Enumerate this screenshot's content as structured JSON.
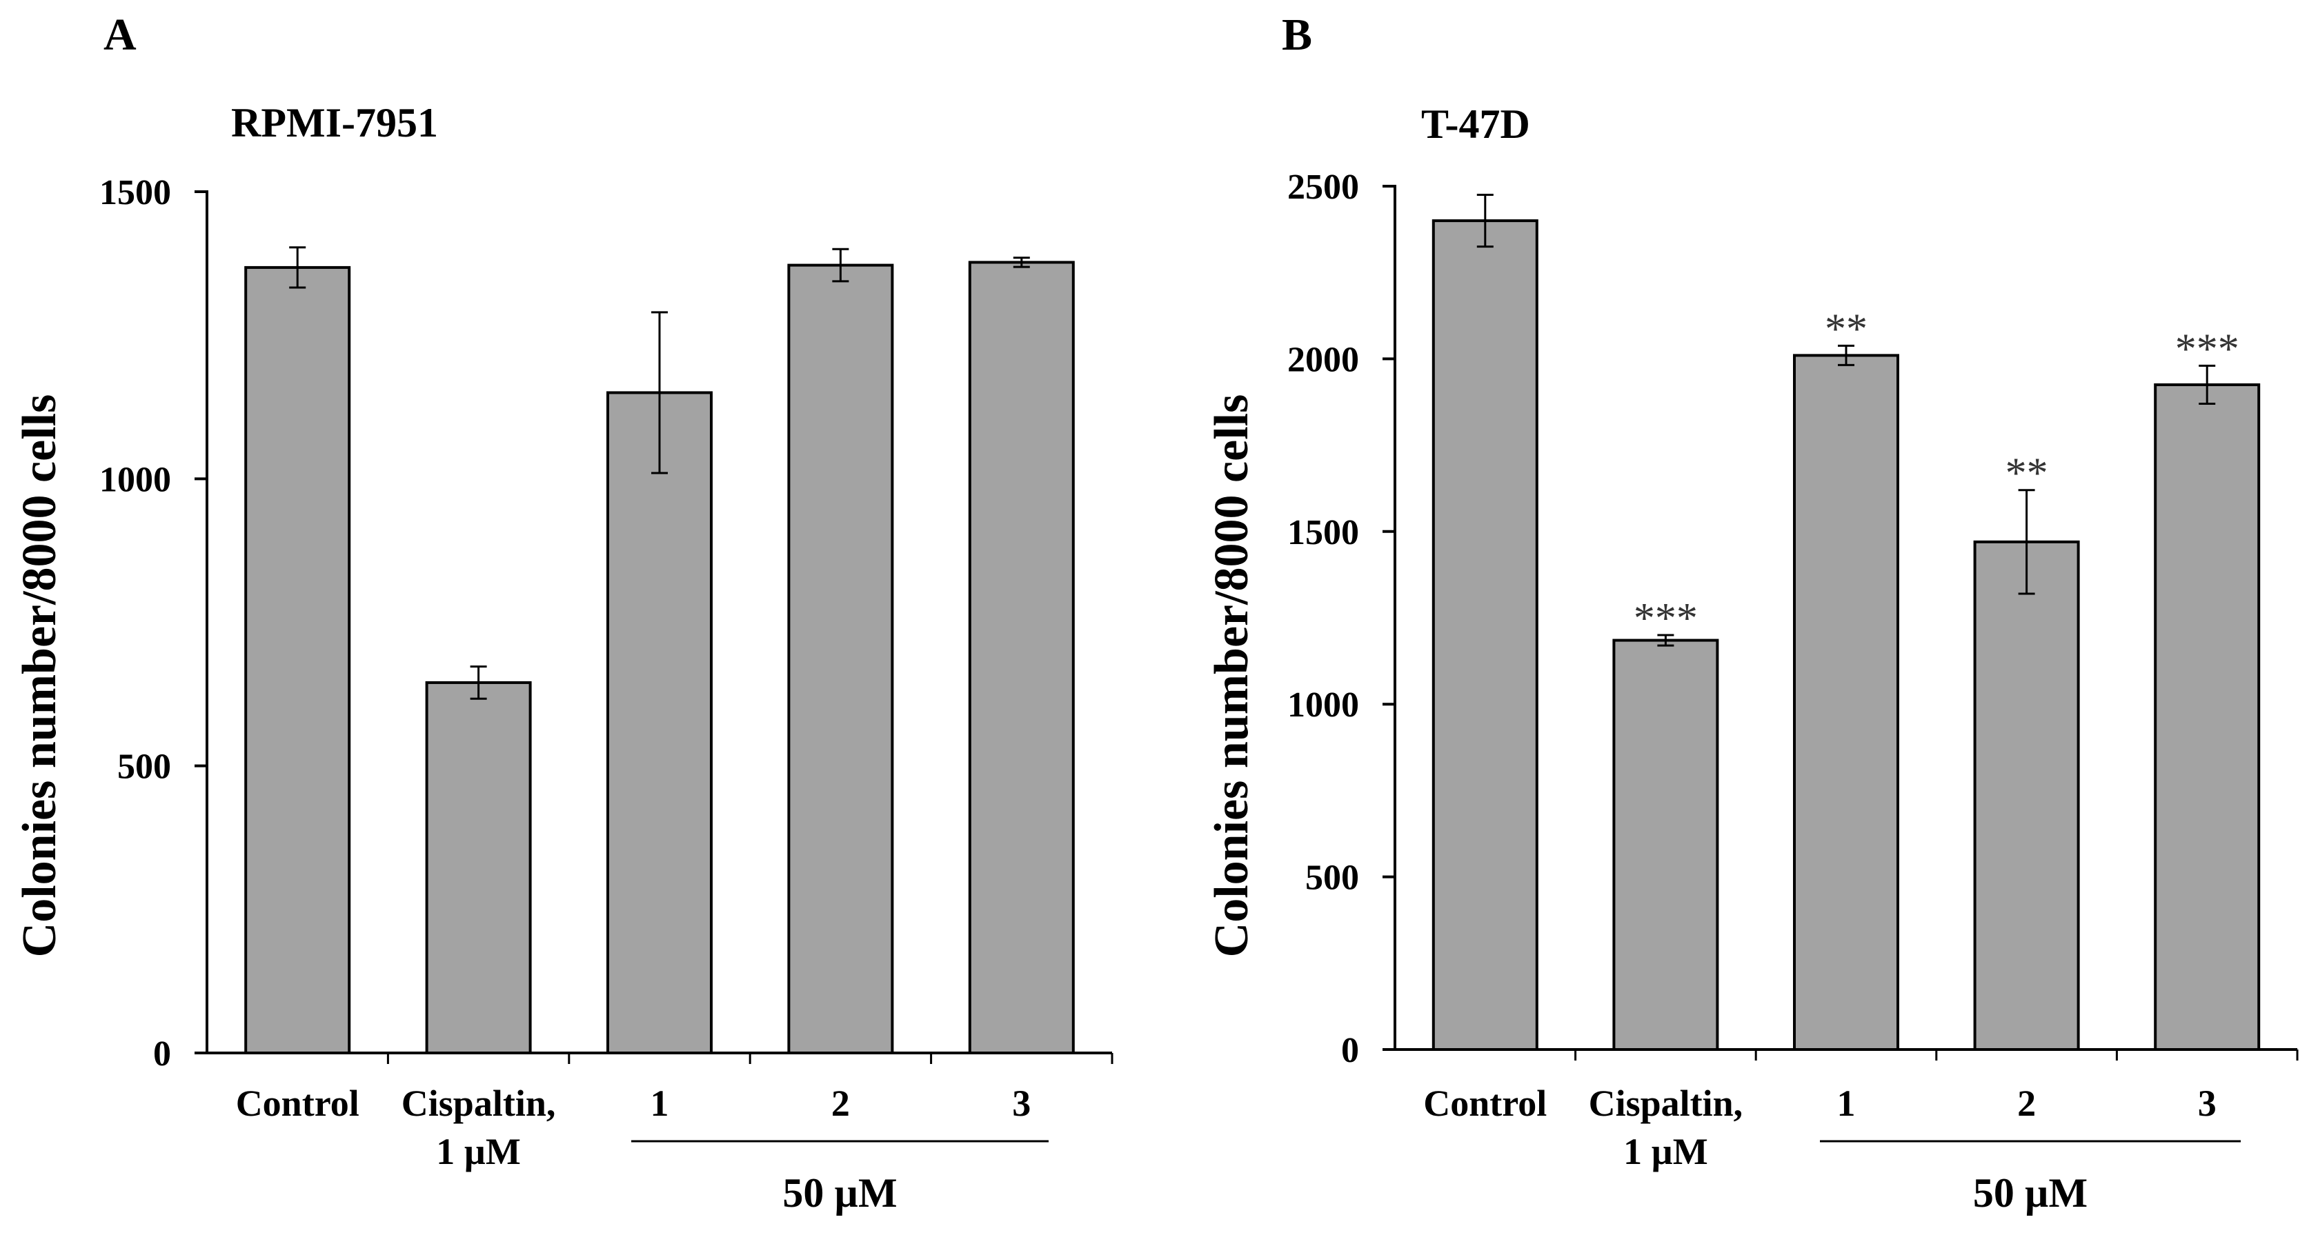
{
  "colors": {
    "bar_fill": "#a3a3a3",
    "bar_stroke": "#000000",
    "axis": "#000000",
    "text": "#000000",
    "significance": "#333333",
    "background": "#ffffff"
  },
  "chart_data": [
    {
      "panel_label": "A",
      "type": "bar",
      "title": "RPMI-7951",
      "ylabel": "Colonies number/8000 cells",
      "xlabel": "",
      "ylim": [
        0,
        1500
      ],
      "yticks": [
        0,
        500,
        1000,
        1500
      ],
      "grid": false,
      "categories": [
        {
          "line1": "Control",
          "line2": ""
        },
        {
          "line1": "Cispaltin,",
          "line2": "1 µM"
        },
        {
          "line1": "1",
          "line2": ""
        },
        {
          "line1": "2",
          "line2": ""
        },
        {
          "line1": "3",
          "line2": ""
        }
      ],
      "values": [
        1368,
        645,
        1150,
        1372,
        1377
      ],
      "errors": [
        35,
        28,
        140,
        28,
        8
      ],
      "significance": [
        "",
        "",
        "",
        "",
        ""
      ],
      "group_bracket": {
        "label": "50 µM",
        "from_category": 2,
        "to_category": 4
      }
    },
    {
      "panel_label": "B",
      "type": "bar",
      "title": "T-47D",
      "ylabel": "Colonies number/8000 cells",
      "xlabel": "",
      "ylim": [
        0,
        2500
      ],
      "yticks": [
        0,
        500,
        1000,
        1500,
        2000,
        2500
      ],
      "grid": false,
      "categories": [
        {
          "line1": "Control",
          "line2": ""
        },
        {
          "line1": "Cispaltin,",
          "line2": "1 µM"
        },
        {
          "line1": "1",
          "line2": ""
        },
        {
          "line1": "2",
          "line2": ""
        },
        {
          "line1": "3",
          "line2": ""
        }
      ],
      "values": [
        2400,
        1185,
        2010,
        1470,
        1925
      ],
      "errors": [
        75,
        15,
        28,
        150,
        55
      ],
      "significance": [
        "",
        "***",
        "**",
        "**",
        "***"
      ],
      "group_bracket": {
        "label": "50 µM",
        "from_category": 2,
        "to_category": 4
      }
    }
  ]
}
